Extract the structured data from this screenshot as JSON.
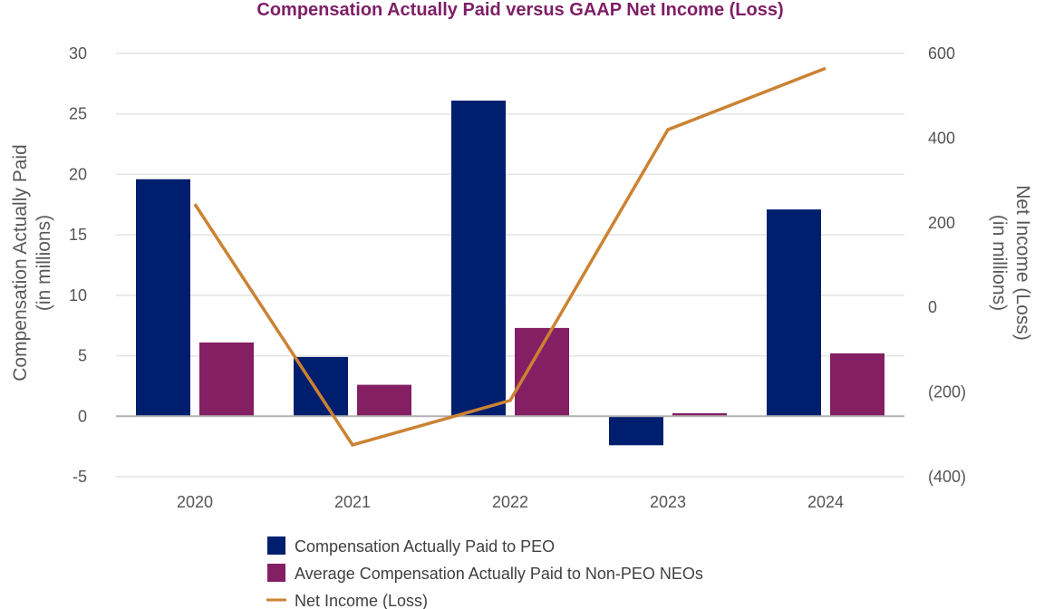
{
  "chart_data": {
    "type": "bar",
    "title": "Compensation Actually Paid versus GAAP Net Income (Loss)",
    "categories": [
      "2020",
      "2021",
      "2022",
      "2023",
      "2024"
    ],
    "series": [
      {
        "name": "Compensation Actually Paid to PEO",
        "kind": "bar",
        "axis": "left",
        "color": "#001e6e",
        "values": [
          19.6,
          4.9,
          26.1,
          -2.4,
          17.1
        ]
      },
      {
        "name": "Average Compensation Actually Paid to Non-PEO NEOs",
        "kind": "bar",
        "axis": "left",
        "color": "#841f63",
        "values": [
          6.1,
          2.6,
          7.3,
          0.25,
          5.2
        ]
      },
      {
        "name": "Net Income (Loss)",
        "kind": "line",
        "axis": "right",
        "color": "#cc8233",
        "values": [
          244,
          -325,
          -220,
          420,
          565
        ]
      }
    ],
    "y_left": {
      "label_line1": "Compensation Actually Paid",
      "label_line2": "(in millions)",
      "ylim": [
        -5,
        30
      ],
      "ticks": [
        -5,
        0,
        5,
        10,
        15,
        20,
        25,
        30
      ],
      "tick_labels": [
        "-5",
        "0",
        "5",
        "10",
        "15",
        "20",
        "25",
        "30"
      ]
    },
    "y_right": {
      "label_line1": "Net Income (Loss)",
      "label_line2": "(in millions)",
      "ylim": [
        -400,
        600
      ],
      "ticks": [
        -400,
        -200,
        0,
        200,
        400,
        600
      ],
      "tick_labels": [
        "(400)",
        "(200)",
        "0",
        "200",
        "400",
        "600"
      ]
    },
    "grid": true,
    "legend_position": "bottom",
    "colors": {
      "title": "#7d1f66",
      "grid": "#e4e4e4",
      "zero_line": "#b0b0b0"
    }
  }
}
